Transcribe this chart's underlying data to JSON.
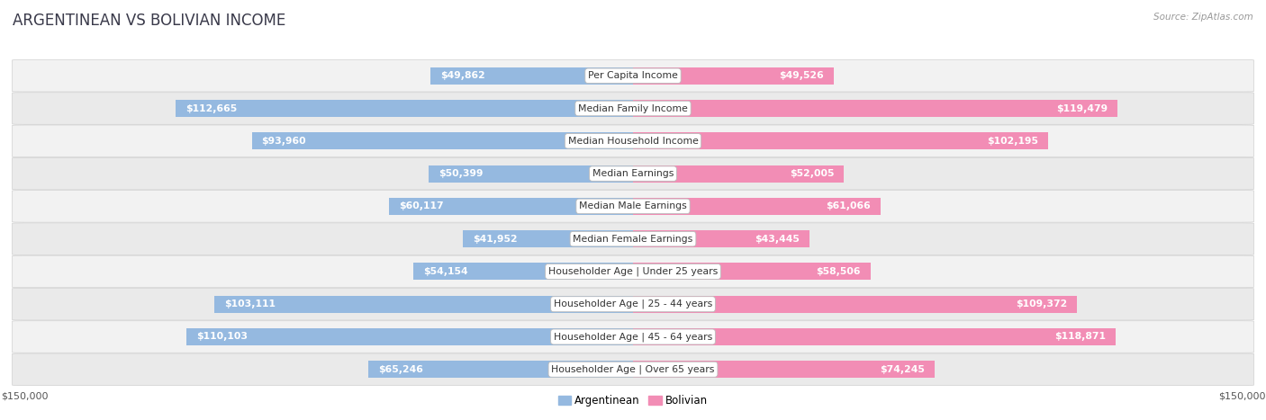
{
  "title": "ARGENTINEAN VS BOLIVIAN INCOME",
  "source": "Source: ZipAtlas.com",
  "categories": [
    "Per Capita Income",
    "Median Family Income",
    "Median Household Income",
    "Median Earnings",
    "Median Male Earnings",
    "Median Female Earnings",
    "Householder Age | Under 25 years",
    "Householder Age | 25 - 44 years",
    "Householder Age | 45 - 64 years",
    "Householder Age | Over 65 years"
  ],
  "argentinean": [
    49862,
    112665,
    93960,
    50399,
    60117,
    41952,
    54154,
    103111,
    110103,
    65246
  ],
  "bolivian": [
    49526,
    119479,
    102195,
    52005,
    61066,
    43445,
    58506,
    109372,
    118871,
    74245
  ],
  "max_val": 150000,
  "arg_color": "#95b9e0",
  "bol_color": "#f28db5",
  "bar_height": 0.52,
  "title_fontsize": 12,
  "value_fontsize": 7.8,
  "cat_fontsize": 7.8,
  "axis_fontsize": 8
}
